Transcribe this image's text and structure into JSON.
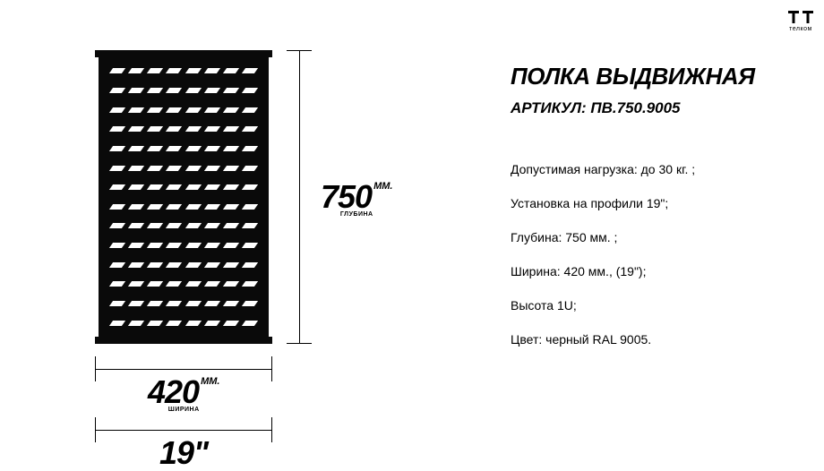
{
  "brand": {
    "name": "телком"
  },
  "product": {
    "title": "ПОЛКА ВЫДВИЖНАЯ",
    "sku_label": "АРТИКУЛ: ПВ.750.9005"
  },
  "specs": [
    "Допустимая нагрузка: до 30 кг. ;",
    "Установка на профили 19\";",
    "Глубина: 750 мм. ;",
    "Ширина: 420 мм., (19\");",
    "Высота 1U;",
    "Цвет: черный RAL 9005."
  ],
  "dimensions": {
    "depth": {
      "value": "750",
      "unit": "ММ.",
      "label": "ГЛУБИНА"
    },
    "width_mm": {
      "value": "420",
      "unit": "ММ.",
      "label": "ШИРИНА"
    },
    "width_inch": {
      "value": "19\""
    }
  },
  "diagram": {
    "shelf_color": "#0a0a0a",
    "slot_rows": 14,
    "slot_cols": 8,
    "slot_color": "#ffffff",
    "line_color": "#000000",
    "background": "#ffffff"
  },
  "typography": {
    "title_fontsize": 26,
    "sku_fontsize": 17,
    "spec_fontsize": 14,
    "bignum_fontsize": 36
  }
}
